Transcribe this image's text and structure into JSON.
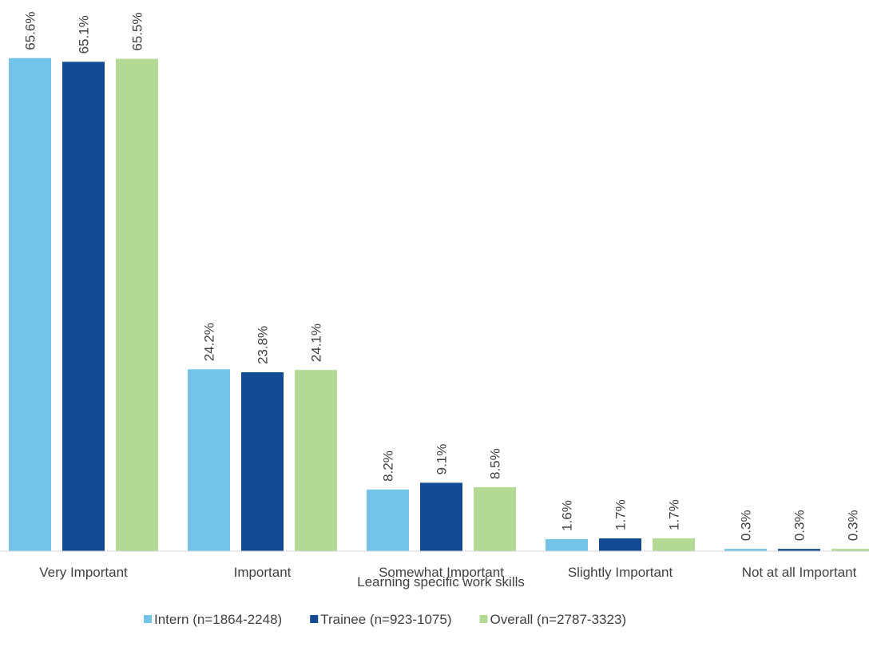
{
  "chart_data": {
    "type": "bar",
    "categories": [
      "Very Important",
      "Important",
      "Somewhat Important",
      "Slightly Important",
      "Not at all Important"
    ],
    "series": [
      {
        "name": "Intern (n=1864-2248)",
        "values": [
          65.6,
          24.2,
          8.2,
          1.6,
          0.3
        ],
        "labels": [
          "65.6%",
          "24.2%",
          "8.2%",
          "1.6%",
          "0.3%"
        ]
      },
      {
        "name": "Trainee (n=923-1075)",
        "values": [
          65.1,
          23.8,
          9.1,
          1.7,
          0.3
        ],
        "labels": [
          "65.1%",
          "23.8%",
          "9.1%",
          "1.7%",
          "0.3%"
        ]
      },
      {
        "name": "Overall (n=2787-3323)",
        "values": [
          65.5,
          24.1,
          8.5,
          1.7,
          0.3
        ],
        "labels": [
          "65.5%",
          "24.1%",
          "8.5%",
          "1.7%",
          "0.3%"
        ]
      }
    ],
    "title": "",
    "xlabel": "Learning specific work skills",
    "ylabel": "",
    "ylim": [
      0,
      73
    ],
    "grid": false,
    "legend_position": "bottom",
    "colors": [
      "#74C3E8",
      "#124A94",
      "#B3D995"
    ]
  }
}
